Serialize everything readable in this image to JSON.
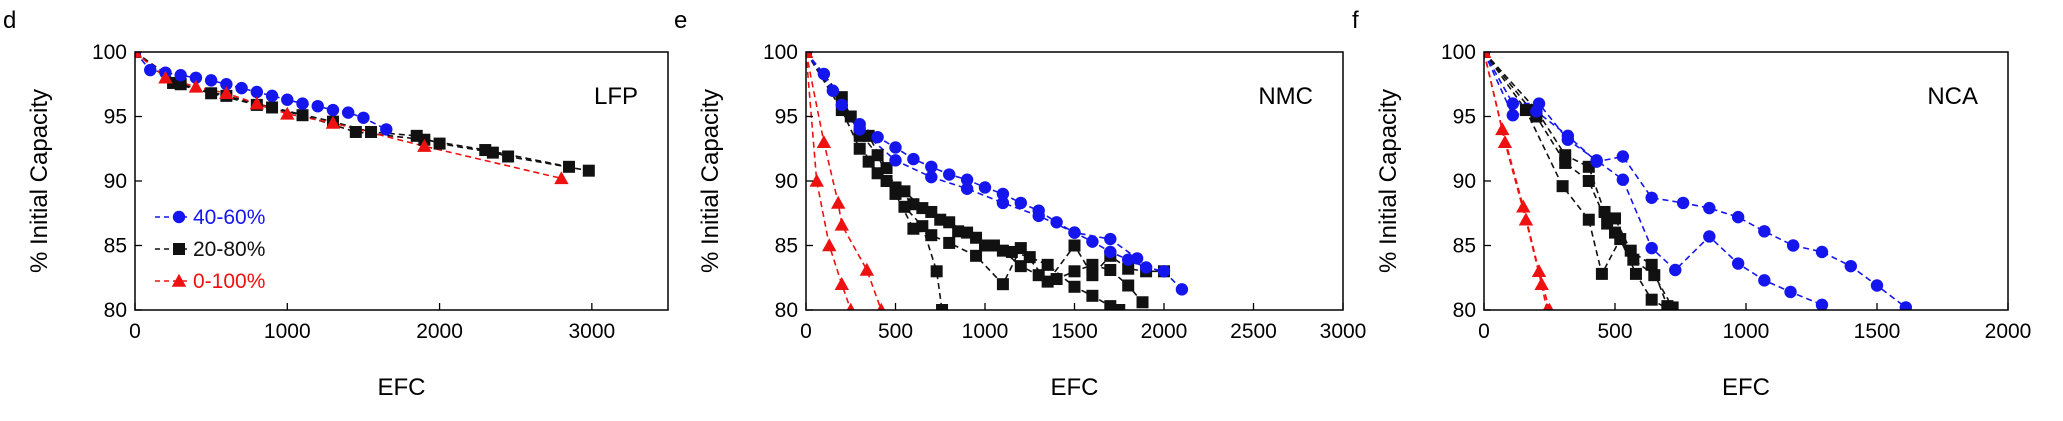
{
  "colors": {
    "blue": "#1515ee",
    "black": "#111111",
    "red": "#ee1111"
  },
  "chart_data": [
    {
      "type": "scatter",
      "panel_letter": "d",
      "annotation": "LFP",
      "xlabel": "EFC",
      "ylabel": "% Initial Capacity",
      "xlim": [
        0,
        3500
      ],
      "ylim": [
        80,
        100
      ],
      "xticks": [
        0,
        1000,
        2000,
        3000
      ],
      "yticks": [
        80,
        85,
        90,
        95,
        100
      ],
      "grid": false,
      "legend_position": "bottom-left",
      "legend": [
        "40-60%",
        "20-80%",
        "0-100%"
      ],
      "series": [
        {
          "name": "40-60%",
          "color": "blue",
          "marker": "circle",
          "curves": [
            [
              [
                0,
                100
              ],
              [
                100,
                98.6
              ],
              [
                200,
                98.4
              ],
              [
                300,
                98.2
              ],
              [
                400,
                98.0
              ],
              [
                500,
                97.8
              ],
              [
                600,
                97.5
              ],
              [
                700,
                97.2
              ],
              [
                800,
                96.9
              ],
              [
                900,
                96.6
              ],
              [
                1000,
                96.3
              ],
              [
                1100,
                96.0
              ],
              [
                1200,
                95.8
              ],
              [
                1300,
                95.5
              ],
              [
                1400,
                95.3
              ],
              [
                1500,
                94.9
              ],
              [
                1650,
                94.0
              ]
            ]
          ]
        },
        {
          "name": "20-80%",
          "color": "black",
          "marker": "square",
          "curves": [
            [
              [
                0,
                100
              ],
              [
                250,
                97.6
              ],
              [
                500,
                96.8
              ],
              [
                800,
                95.9
              ],
              [
                1100,
                95.1
              ],
              [
                1450,
                93.8
              ],
              [
                1900,
                93.2
              ],
              [
                2300,
                92.4
              ],
              [
                2850,
                91.1
              ]
            ],
            [
              [
                0,
                100
              ],
              [
                300,
                97.5
              ],
              [
                600,
                96.6
              ],
              [
                900,
                95.7
              ],
              [
                1300,
                94.6
              ],
              [
                1550,
                93.8
              ],
              [
                1850,
                93.5
              ],
              [
                2000,
                92.9
              ],
              [
                2350,
                92.2
              ],
              [
                2450,
                91.9
              ],
              [
                2980,
                90.8
              ]
            ]
          ]
        },
        {
          "name": "0-100%",
          "color": "red",
          "marker": "triangle",
          "curves": [
            [
              [
                0,
                100
              ],
              [
                200,
                98.0
              ],
              [
                400,
                97.3
              ],
              [
                600,
                96.8
              ],
              [
                800,
                96.0
              ],
              [
                1000,
                95.2
              ],
              [
                1300,
                94.5
              ],
              [
                1900,
                92.7
              ],
              [
                2800,
                90.2
              ]
            ]
          ]
        }
      ]
    },
    {
      "type": "scatter",
      "panel_letter": "e",
      "annotation": "NMC",
      "xlabel": "EFC",
      "ylabel": "% Initial Capacity",
      "xlim": [
        0,
        3000
      ],
      "ylim": [
        80,
        100
      ],
      "xticks": [
        0,
        500,
        1000,
        1500,
        2000,
        2500,
        3000
      ],
      "yticks": [
        80,
        85,
        90,
        95,
        100
      ],
      "grid": false,
      "series": [
        {
          "name": "40-60%",
          "color": "blue",
          "marker": "circle",
          "curves": [
            [
              [
                0,
                100
              ],
              [
                100,
                98.3
              ],
              [
                200,
                95.9
              ],
              [
                300,
                94.4
              ],
              [
                400,
                93.4
              ],
              [
                500,
                92.6
              ],
              [
                600,
                91.7
              ],
              [
                700,
                91.1
              ],
              [
                800,
                90.5
              ],
              [
                900,
                90.1
              ],
              [
                1000,
                89.5
              ],
              [
                1100,
                89.0
              ],
              [
                1200,
                88.3
              ],
              [
                1300,
                87.7
              ],
              [
                1400,
                86.8
              ],
              [
                1500,
                86.0
              ],
              [
                1600,
                85.3
              ],
              [
                1700,
                84.5
              ],
              [
                1800,
                83.9
              ],
              [
                1900,
                83.3
              ],
              [
                2000,
                83.0
              ],
              [
                2100,
                81.6
              ]
            ],
            [
              [
                0,
                100
              ],
              [
                150,
                97.0
              ],
              [
                300,
                94.0
              ],
              [
                500,
                91.6
              ],
              [
                700,
                90.3
              ],
              [
                900,
                89.4
              ],
              [
                1100,
                88.3
              ],
              [
                1300,
                87.3
              ],
              [
                1500,
                86.0
              ],
              [
                1700,
                85.5
              ],
              [
                1850,
                84.0
              ]
            ]
          ]
        },
        {
          "name": "20-80%",
          "color": "black",
          "marker": "square",
          "curves": [
            [
              [
                0,
                100
              ],
              [
                200,
                96.5
              ],
              [
                300,
                93.5
              ],
              [
                350,
                91.5
              ],
              [
                450,
                90.0
              ],
              [
                550,
                89.2
              ],
              [
                650,
                87.9
              ],
              [
                750,
                87.0
              ],
              [
                850,
                86.1
              ],
              [
                950,
                85.6
              ],
              [
                1050,
                85.0
              ],
              [
                1150,
                84.5
              ],
              [
                1250,
                84.1
              ],
              [
                1350,
                83.5
              ],
              [
                1500,
                81.8
              ],
              [
                1600,
                81.1
              ],
              [
                1700,
                80.3
              ],
              [
                1750,
                80.0
              ]
            ],
            [
              [
                0,
                100
              ],
              [
                200,
                95.5
              ],
              [
                300,
                92.5
              ],
              [
                400,
                90.6
              ],
              [
                500,
                89.5
              ],
              [
                600,
                88.2
              ],
              [
                700,
                87.6
              ],
              [
                800,
                86.8
              ],
              [
                900,
                86.0
              ],
              [
                1000,
                85.0
              ],
              [
                1100,
                84.6
              ],
              [
                1200,
                83.4
              ],
              [
                1300,
                82.7
              ],
              [
                1400,
                82.4
              ],
              [
                1500,
                83.0
              ],
              [
                1600,
                83.5
              ],
              [
                1700,
                83.1
              ],
              [
                1800,
                81.9
              ],
              [
                1880,
                80.6
              ]
            ],
            [
              [
                0,
                100
              ],
              [
                250,
                95.0
              ],
              [
                350,
                93.5
              ],
              [
                450,
                91.0
              ],
              [
                550,
                88.0
              ],
              [
                650,
                86.5
              ],
              [
                730,
                83.0
              ],
              [
                760,
                80.0
              ]
            ],
            [
              [
                0,
                100
              ],
              [
                300,
                93.8
              ],
              [
                400,
                92.0
              ],
              [
                500,
                89.0
              ],
              [
                600,
                86.3
              ],
              [
                700,
                85.8
              ],
              [
                800,
                85.2
              ],
              [
                950,
                84.2
              ],
              [
                1100,
                82.0
              ],
              [
                1200,
                84.8
              ],
              [
                1350,
                82.2
              ],
              [
                1500,
                85.0
              ],
              [
                1600,
                82.7
              ],
              [
                1700,
                84.2
              ],
              [
                1800,
                83.2
              ],
              [
                1900,
                83.0
              ],
              [
                2000,
                83.0
              ]
            ]
          ]
        },
        {
          "name": "0-100%",
          "color": "red",
          "marker": "triangle",
          "curves": [
            [
              [
                0,
                100
              ],
              [
                100,
                93.0
              ],
              [
                180,
                88.3
              ],
              [
                200,
                86.6
              ],
              [
                340,
                83.1
              ],
              [
                420,
                80.0
              ]
            ],
            [
              [
                0,
                100
              ],
              [
                60,
                90.0
              ],
              [
                130,
                85.0
              ],
              [
                200,
                82.0
              ],
              [
                250,
                80.0
              ]
            ]
          ]
        }
      ]
    },
    {
      "type": "scatter",
      "panel_letter": "f",
      "annotation": "NCA",
      "xlabel": "EFC",
      "ylabel": "% Initial Capacity",
      "xlim": [
        0,
        2000
      ],
      "ylim": [
        80,
        100
      ],
      "xticks": [
        0,
        500,
        1000,
        1500,
        2000
      ],
      "yticks": [
        80,
        85,
        90,
        95,
        100
      ],
      "grid": false,
      "series": [
        {
          "name": "40-60%",
          "color": "blue",
          "marker": "circle",
          "curves": [
            [
              [
                0,
                100
              ],
              [
                110,
                95.1
              ],
              [
                200,
                95.4
              ],
              [
                320,
                93.5
              ],
              [
                430,
                91.5
              ],
              [
                530,
                91.9
              ],
              [
                640,
                88.7
              ],
              [
                760,
                88.3
              ],
              [
                860,
                87.9
              ],
              [
                970,
                87.2
              ],
              [
                1070,
                86.1
              ],
              [
                1180,
                85.0
              ],
              [
                1290,
                84.5
              ],
              [
                1400,
                83.4
              ],
              [
                1500,
                81.9
              ],
              [
                1610,
                80.2
              ]
            ],
            [
              [
                0,
                100
              ],
              [
                110,
                96.0
              ],
              [
                210,
                96.0
              ],
              [
                320,
                93.2
              ],
              [
                430,
                91.6
              ],
              [
                530,
                90.1
              ],
              [
                640,
                84.8
              ],
              [
                730,
                83.1
              ],
              [
                860,
                85.7
              ],
              [
                970,
                83.6
              ],
              [
                1070,
                82.3
              ],
              [
                1170,
                81.4
              ],
              [
                1290,
                80.4
              ]
            ]
          ]
        },
        {
          "name": "20-80%",
          "color": "black",
          "marker": "square",
          "curves": [
            [
              [
                0,
                100
              ],
              [
                200,
                95.5
              ],
              [
                310,
                92.0
              ],
              [
                400,
                91.1
              ],
              [
                460,
                87.6
              ],
              [
                500,
                87.1
              ],
              [
                560,
                84.6
              ],
              [
                640,
                83.5
              ],
              [
                700,
                80.3
              ]
            ],
            [
              [
                0,
                100
              ],
              [
                200,
                95.0
              ],
              [
                310,
                91.4
              ],
              [
                400,
                90.0
              ],
              [
                470,
                86.7
              ],
              [
                500,
                86.0
              ],
              [
                570,
                83.9
              ],
              [
                650,
                82.7
              ],
              [
                720,
                80.2
              ]
            ],
            [
              [
                0,
                100
              ],
              [
                160,
                95.5
              ],
              [
                300,
                89.6
              ],
              [
                400,
                87.0
              ],
              [
                450,
                82.8
              ],
              [
                520,
                85.5
              ],
              [
                580,
                82.8
              ],
              [
                640,
                80.8
              ],
              [
                700,
                80.1
              ]
            ]
          ]
        },
        {
          "name": "0-100%",
          "color": "red",
          "marker": "triangle",
          "curves": [
            [
              [
                0,
                100
              ],
              [
                70,
                94.0
              ],
              [
                150,
                88.0
              ],
              [
                210,
                83.0
              ],
              [
                250,
                80.0
              ]
            ],
            [
              [
                0,
                100
              ],
              [
                80,
                93.0
              ],
              [
                160,
                87.0
              ],
              [
                220,
                82.0
              ],
              [
                240,
                80.0
              ]
            ]
          ]
        }
      ]
    }
  ]
}
